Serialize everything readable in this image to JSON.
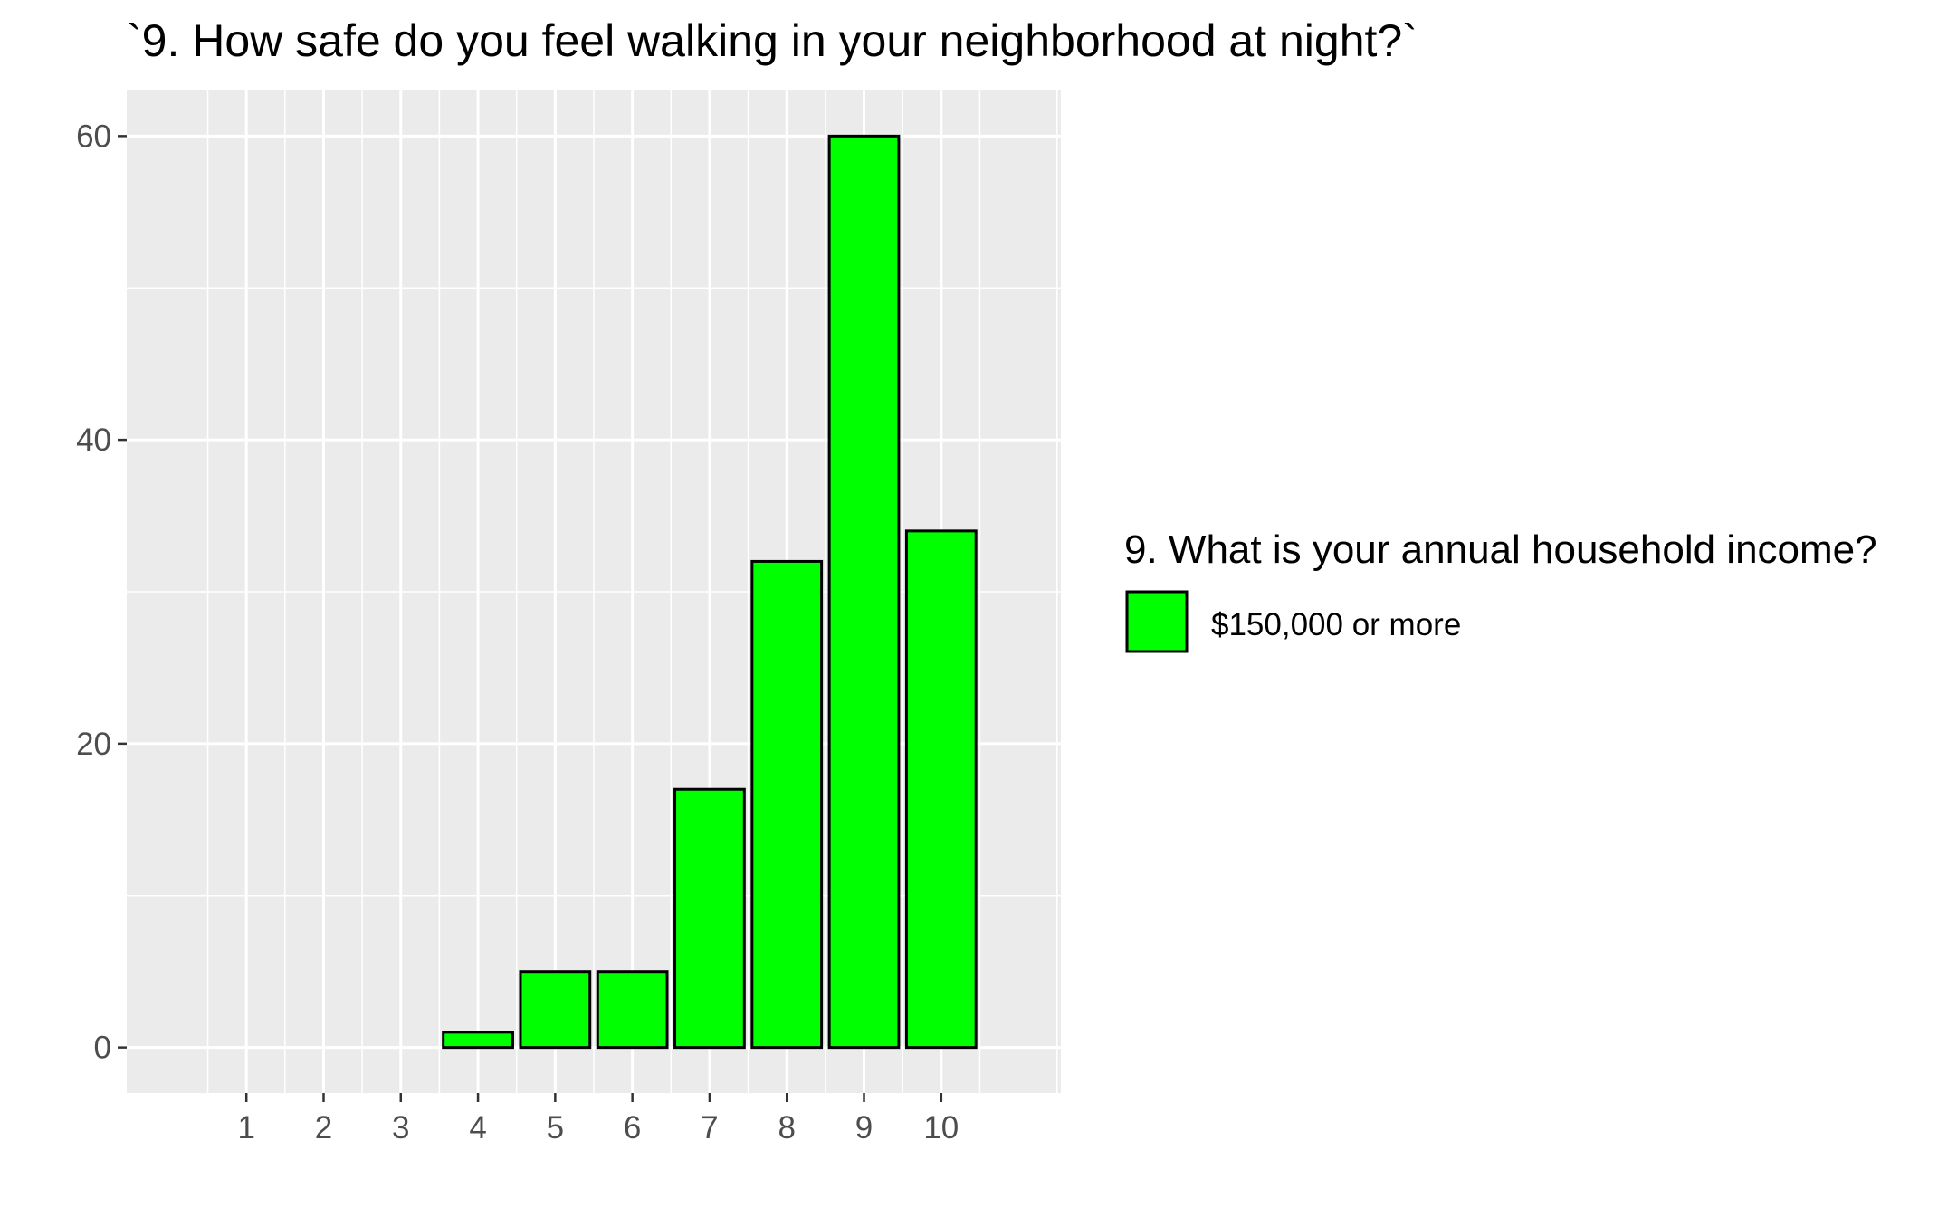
{
  "chart_data": {
    "type": "bar",
    "title": "`9. How safe do you feel walking in your neighborhood at night?`",
    "xlabel": "",
    "ylabel": "",
    "categories": [
      "1",
      "2",
      "3",
      "4",
      "5",
      "6",
      "7",
      "8",
      "9",
      "10"
    ],
    "series": [
      {
        "name": "$150,000 or more",
        "values": [
          0,
          0,
          0,
          1,
          5,
          5,
          17,
          32,
          60,
          34
        ]
      }
    ],
    "x_range": [
      -0.55,
      11.55
    ],
    "ylim": [
      -3,
      63
    ],
    "y_ticks": [
      0,
      20,
      40,
      60
    ],
    "grid": true,
    "legend": {
      "title": "9. What is your annual household income?",
      "placement": "right"
    },
    "colors": {
      "bar_fill": "#00ff00",
      "bar_stroke": "#000000",
      "panel_background": "#ebebeb",
      "grid": "#ffffff"
    }
  }
}
